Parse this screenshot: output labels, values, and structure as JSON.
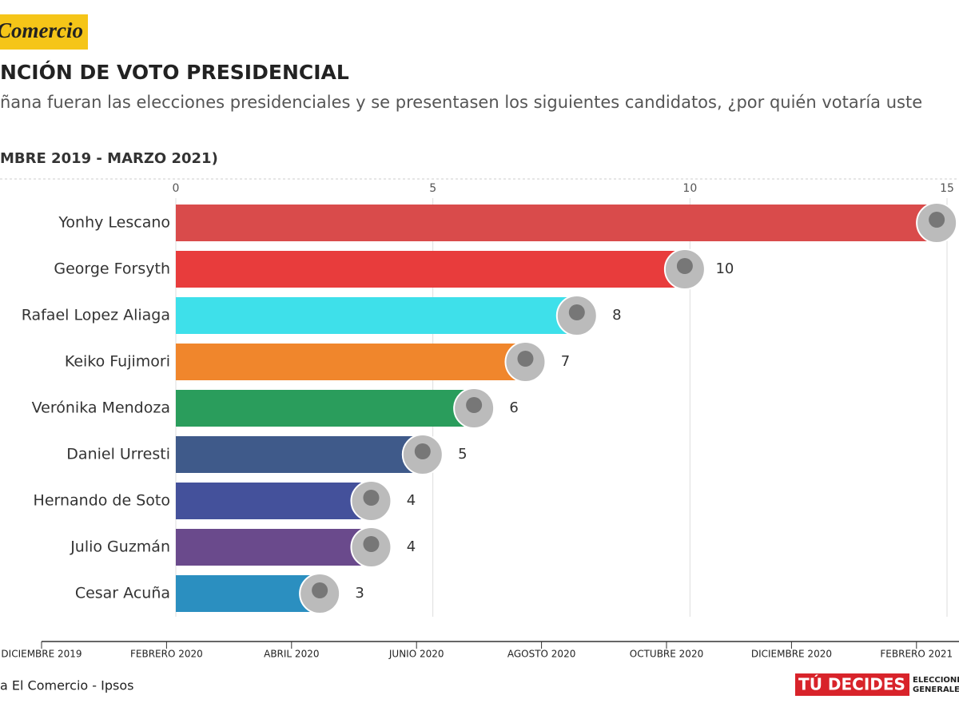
{
  "chart_data": {
    "type": "bar",
    "orientation": "horizontal",
    "logo": "Comercio",
    "title": "NCIÓN DE VOTO PRESIDENCIAL",
    "subtitle": "ñana fueran las elecciones presidenciales y se presentasen los siguientes candidatos, ¿por quién votaría uste",
    "period": "MBRE 2019 - MARZO 2021)",
    "categories": [
      "Yonhy Lescano",
      "George Forsyth",
      "Rafael Lopez Aliaga",
      "Keiko Fujimori",
      "Verónika Mendoza",
      "Daniel Urresti",
      "Hernando de Soto",
      "Julio Guzmán",
      "Cesar Acuña"
    ],
    "values": [
      14.8,
      9.9,
      7.8,
      6.8,
      5.8,
      4.8,
      3.8,
      3.8,
      2.8
    ],
    "value_labels": [
      null,
      "10",
      "8",
      "7",
      "6",
      "5",
      "4",
      "4",
      "3"
    ],
    "colors": [
      "#d94b4b",
      "#e83c3c",
      "#3ee0ea",
      "#f0862c",
      "#2a9d5c",
      "#3f5a8a",
      "#44519b",
      "#6a4a8c",
      "#2b8fc0"
    ],
    "xlim": [
      0,
      15
    ],
    "xticks": [
      0,
      5,
      10,
      15
    ],
    "grid": true,
    "timeline": [
      "DICIEMBRE 2019",
      "FEBRERO 2020",
      "ABRIL 2020",
      "JUNIO 2020",
      "AGOSTO 2020",
      "OCTUBRE 2020",
      "DICIEMBRE 2020",
      "FEBRERO 2021"
    ],
    "source": "a El Comercio - Ipsos",
    "badge": "TÚ DECIDES",
    "badge_sub": [
      "ELECCIONE",
      "GENERALE"
    ]
  }
}
